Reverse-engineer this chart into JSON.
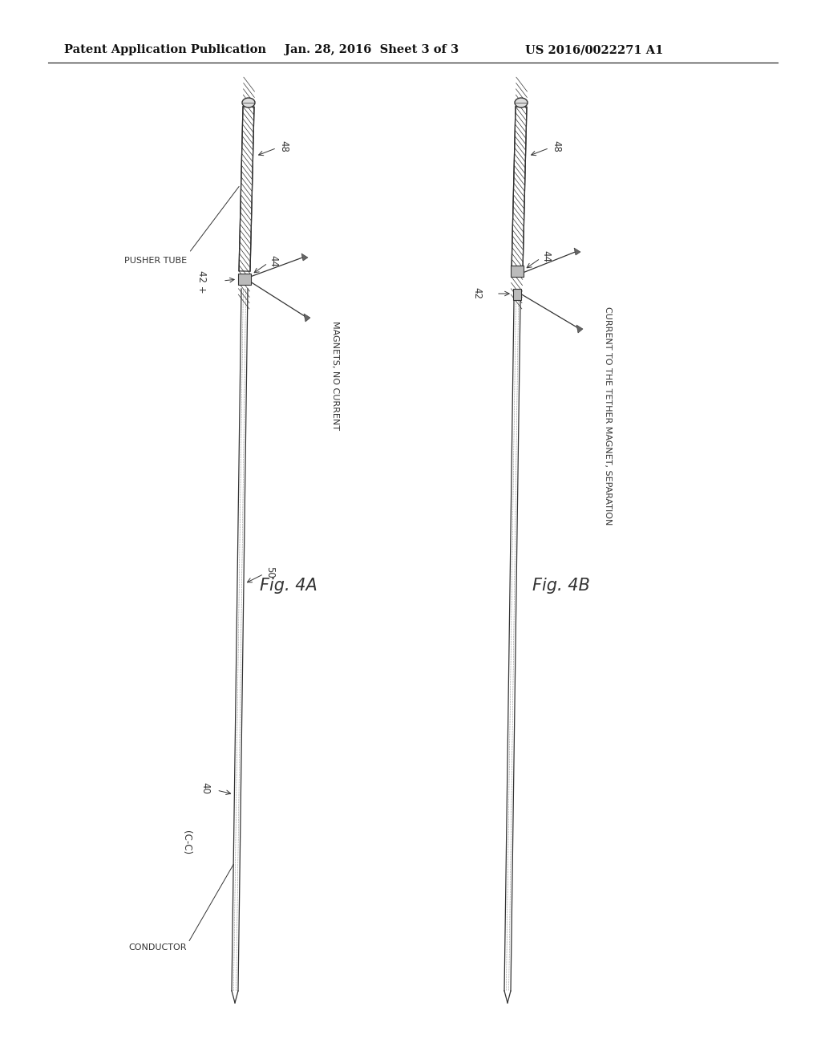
{
  "header_left": "Patent Application Publication",
  "header_mid": "Jan. 28, 2016  Sheet 3 of 3",
  "header_right": "US 2016/0022271 A1",
  "fig4a_label": "Fig. 4A",
  "fig4b_label": "Fig. 4B",
  "label_48": "48",
  "label_44": "44",
  "label_42": "42",
  "label_plus": "+",
  "label_pusher_tube": "PUSHER TUBE",
  "label_magnets_no_current": "MAGNETS, NO CURRENT",
  "label_50": "50",
  "label_40": "40",
  "label_cc": "(C-C)",
  "label_conductor": "CONDUCTOR",
  "label_current": "CURRENT TO THE TETHER MAGNET, SEPARATION",
  "bg_color": "#ffffff",
  "line_color": "#333333"
}
